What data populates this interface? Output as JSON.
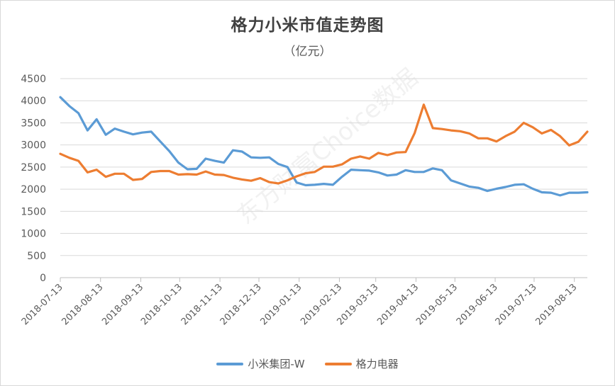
{
  "title": "格力小米市值走势图",
  "subtitle": "（亿元）",
  "watermark": "东方财富Choice数据",
  "colors": {
    "xiaomi": "#5b9bd5",
    "gree": "#ed7d31",
    "grid": "#d9d9d9",
    "axis_text": "#595959"
  },
  "chart_data": {
    "type": "line",
    "title": "格力小米市值走势图",
    "subtitle": "（亿元）",
    "xlabel": "",
    "ylabel": "",
    "ylim": [
      0,
      4500
    ],
    "yticks": [
      0,
      500,
      1000,
      1500,
      2000,
      2500,
      3000,
      3500,
      4000,
      4500
    ],
    "grid": true,
    "legend_position": "bottom",
    "x_tick_labels": [
      "2018-07-13",
      "2018-08-13",
      "2018-09-13",
      "2018-10-13",
      "2018-11-13",
      "2018-12-13",
      "2019-01-13",
      "2019-02-13",
      "2019-03-13",
      "2019-04-13",
      "2019-05-13",
      "2019-06-13",
      "2019-07-13",
      "2019-08-13"
    ],
    "series": [
      {
        "name": "小米集团-W",
        "color": "#5b9bd5",
        "x": [
          "2018-07-13",
          "2018-07-20",
          "2018-07-27",
          "2018-08-03",
          "2018-08-10",
          "2018-08-17",
          "2018-08-24",
          "2018-08-31",
          "2018-09-07",
          "2018-09-14",
          "2018-09-21",
          "2018-09-28",
          "2018-10-05",
          "2018-10-12",
          "2018-10-19",
          "2018-10-26",
          "2018-11-02",
          "2018-11-09",
          "2018-11-16",
          "2018-11-23",
          "2018-11-30",
          "2018-12-07",
          "2018-12-14",
          "2018-12-21",
          "2018-12-28",
          "2019-01-04",
          "2019-01-11",
          "2019-01-18",
          "2019-01-25",
          "2019-02-01",
          "2019-02-08",
          "2019-02-15",
          "2019-02-22",
          "2019-03-01",
          "2019-03-08",
          "2019-03-15",
          "2019-03-22",
          "2019-03-29",
          "2019-04-05",
          "2019-04-12",
          "2019-04-19",
          "2019-04-26",
          "2019-05-03",
          "2019-05-10",
          "2019-05-17",
          "2019-05-24",
          "2019-05-31",
          "2019-06-07",
          "2019-06-14",
          "2019-06-21",
          "2019-06-28",
          "2019-07-05",
          "2019-07-12",
          "2019-07-19",
          "2019-07-26",
          "2019-08-02",
          "2019-08-09",
          "2019-08-16",
          "2019-08-23"
        ],
        "values": [
          4080,
          3880,
          3720,
          3330,
          3580,
          3230,
          3370,
          3300,
          3240,
          3280,
          3300,
          3080,
          2860,
          2600,
          2450,
          2460,
          2690,
          2640,
          2600,
          2880,
          2850,
          2720,
          2710,
          2720,
          2570,
          2500,
          2150,
          2090,
          2100,
          2120,
          2100,
          2280,
          2440,
          2430,
          2420,
          2380,
          2310,
          2330,
          2430,
          2390,
          2390,
          2470,
          2430,
          2200,
          2130,
          2060,
          2030,
          1960,
          2010,
          2050,
          2100,
          2110,
          2010,
          1930,
          1920,
          1860,
          1920,
          1920,
          1930
        ]
      },
      {
        "name": "格力电器",
        "color": "#ed7d31",
        "x": [
          "2018-07-13",
          "2018-07-20",
          "2018-07-27",
          "2018-08-03",
          "2018-08-10",
          "2018-08-17",
          "2018-08-24",
          "2018-08-31",
          "2018-09-07",
          "2018-09-14",
          "2018-09-21",
          "2018-09-28",
          "2018-10-05",
          "2018-10-12",
          "2018-10-19",
          "2018-10-26",
          "2018-11-02",
          "2018-11-09",
          "2018-11-16",
          "2018-11-23",
          "2018-11-30",
          "2018-12-07",
          "2018-12-14",
          "2018-12-21",
          "2018-12-28",
          "2019-01-04",
          "2019-01-11",
          "2019-01-18",
          "2019-01-25",
          "2019-02-01",
          "2019-02-08",
          "2019-02-15",
          "2019-02-22",
          "2019-03-01",
          "2019-03-08",
          "2019-03-15",
          "2019-03-22",
          "2019-03-29",
          "2019-04-05",
          "2019-04-12",
          "2019-04-19",
          "2019-04-26",
          "2019-05-03",
          "2019-05-10",
          "2019-05-17",
          "2019-05-24",
          "2019-05-31",
          "2019-06-07",
          "2019-06-14",
          "2019-06-21",
          "2019-06-28",
          "2019-07-05",
          "2019-07-12",
          "2019-07-19",
          "2019-07-26",
          "2019-08-02",
          "2019-08-09",
          "2019-08-16",
          "2019-08-23"
        ],
        "values": [
          2800,
          2710,
          2640,
          2380,
          2440,
          2280,
          2350,
          2350,
          2210,
          2230,
          2390,
          2410,
          2410,
          2330,
          2340,
          2330,
          2400,
          2330,
          2320,
          2260,
          2220,
          2190,
          2250,
          2160,
          2130,
          2200,
          2290,
          2360,
          2390,
          2510,
          2510,
          2560,
          2690,
          2740,
          2690,
          2820,
          2770,
          2830,
          2840,
          3270,
          3910,
          3380,
          3360,
          3330,
          3310,
          3260,
          3150,
          3150,
          3080,
          3200,
          3300,
          3500,
          3400,
          3260,
          3340,
          3200,
          2990,
          3070,
          3300
        ]
      }
    ]
  }
}
